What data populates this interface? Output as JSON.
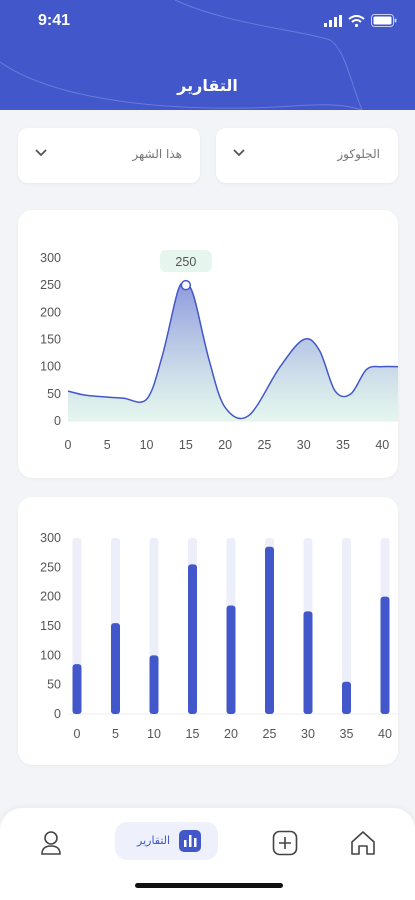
{
  "status_bar": {
    "time": "9:41"
  },
  "header": {
    "title": "التقارير"
  },
  "filters": {
    "metric": {
      "value": "الجلوكوز"
    },
    "period": {
      "value": "هذا الشهر"
    }
  },
  "colors": {
    "primary": "#4257c9",
    "bar_track": "#eceefa",
    "tooltip_bg": "#e6f6ee"
  },
  "chart_data": [
    {
      "type": "area",
      "x": [
        0,
        2,
        4,
        7,
        10,
        12,
        14,
        15,
        16,
        18,
        20,
        23,
        27,
        30,
        32,
        34,
        36,
        38,
        40,
        42
      ],
      "y": [
        55,
        48,
        45,
        42,
        40,
        120,
        240,
        250,
        230,
        110,
        25,
        10,
        100,
        150,
        130,
        55,
        50,
        95,
        100,
        100
      ],
      "xticks": [
        0,
        5,
        10,
        15,
        20,
        25,
        30,
        35,
        40
      ],
      "yticks": [
        0,
        50,
        100,
        150,
        200,
        250,
        300
      ],
      "xlim": [
        0,
        42
      ],
      "ylim": [
        0,
        300
      ],
      "highlight": {
        "x": 15,
        "y": 250,
        "label": "250"
      }
    },
    {
      "type": "bar",
      "categories": [
        "0",
        "5",
        "10",
        "15",
        "20",
        "25",
        "30",
        "35",
        "40"
      ],
      "values": [
        85,
        155,
        100,
        255,
        185,
        285,
        175,
        55,
        200
      ],
      "max": 300,
      "yticks": [
        0,
        50,
        100,
        150,
        200,
        250,
        300
      ],
      "ylim": [
        0,
        300
      ]
    }
  ],
  "bottom_nav": {
    "items": [
      {
        "name": "profile",
        "icon": "user-icon"
      },
      {
        "name": "reports",
        "icon": "bar-chart-icon",
        "label": "التقارير",
        "active": true
      },
      {
        "name": "add",
        "icon": "plus-square-icon"
      },
      {
        "name": "home",
        "icon": "home-icon"
      }
    ]
  }
}
